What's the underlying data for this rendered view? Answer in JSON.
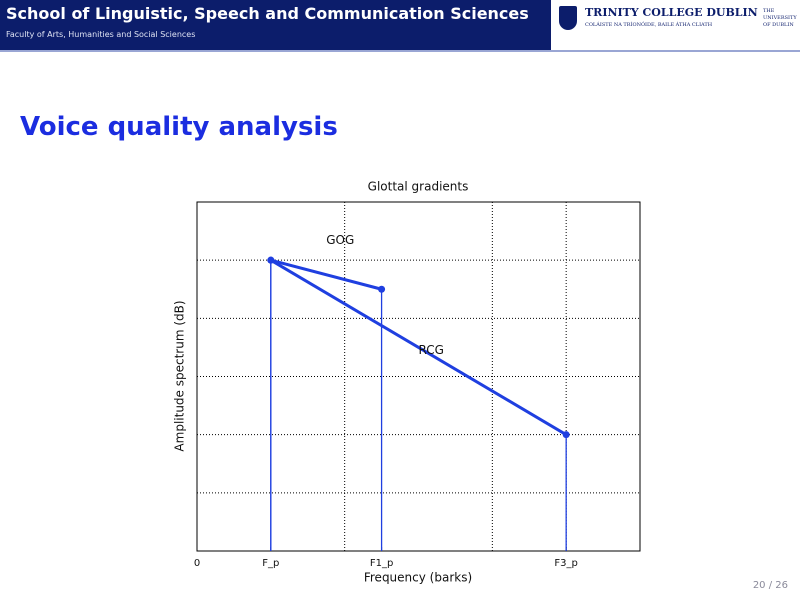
{
  "header": {
    "title": "School of Linguistic, Speech and Communication Sciences",
    "subtitle": "Faculty of Arts, Humanities and Social Sciences",
    "logo": {
      "name": "TRINITY COLLEGE DUBLIN",
      "irish": "COLÁISTE NA TRÍONÓIDE, BAILE ÁTHA CLIATH",
      "university": [
        "THE",
        "UNIVERSITY",
        "OF DUBLIN"
      ]
    }
  },
  "slide_title": "Voice quality analysis",
  "page_number": "20 / 26",
  "chart_data": {
    "type": "line",
    "title": "Glottal gradients",
    "x_label": "Frequency (barks)",
    "y_label": "Amplitude spectrum (dB)",
    "xlim": [
      0,
      6
    ],
    "ylim": [
      0,
      6
    ],
    "xticks": [
      0,
      {
        "value": 1,
        "label": "F_p"
      },
      {
        "value": 2.5,
        "label": "F1_p"
      },
      {
        "value": 5,
        "label": "F3_p"
      }
    ],
    "xgrid": [
      2,
      4,
      5
    ],
    "ygrid": [
      1,
      2,
      3,
      4,
      5
    ],
    "grid": true,
    "series": [
      {
        "name": "GOG",
        "color": "#1f3fe0",
        "x": [
          1,
          2.5
        ],
        "values": [
          5,
          4.5
        ]
      },
      {
        "name": "RCG",
        "color": "#1f3fe0",
        "x": [
          1,
          5
        ],
        "values": [
          5,
          2
        ]
      }
    ]
  }
}
